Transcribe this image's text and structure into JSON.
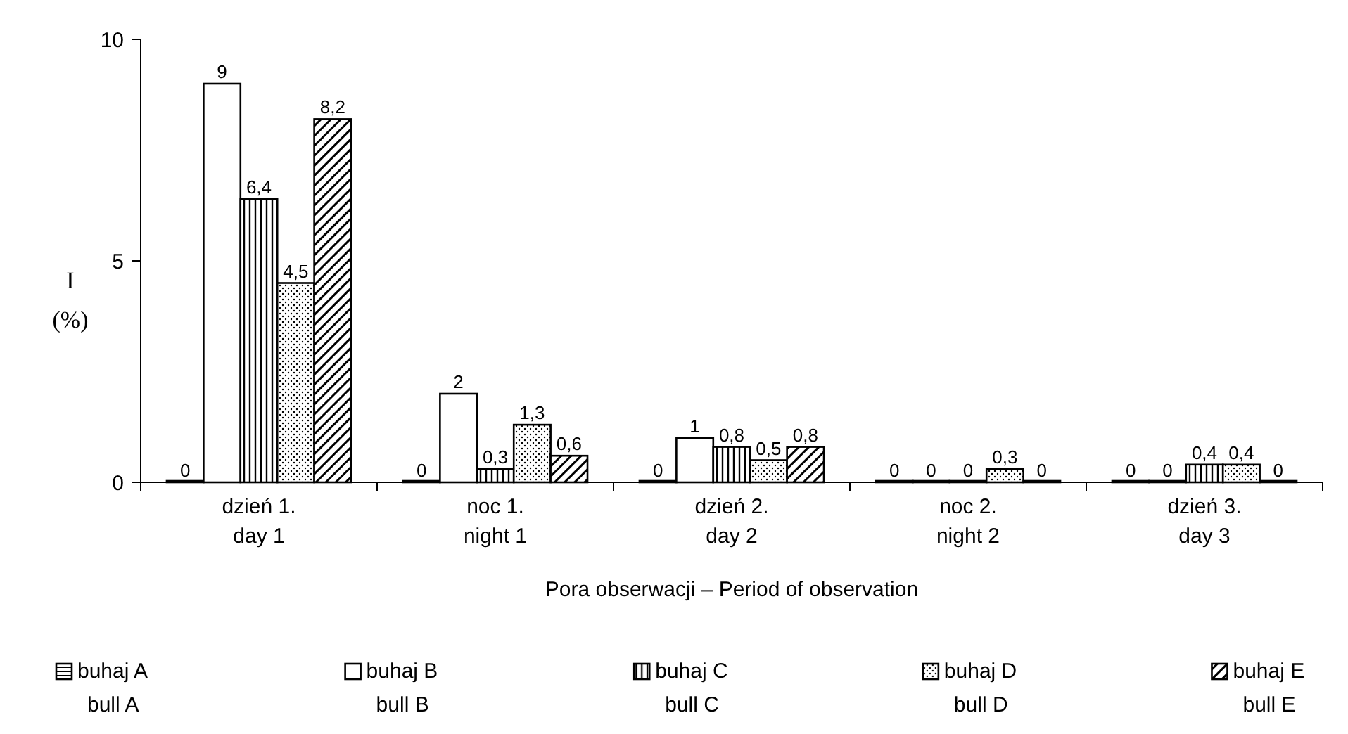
{
  "chart_data": {
    "type": "bar",
    "ylabel": "I\n(%)",
    "xlabel": "Pora obserwacji – Period of observation",
    "categories": [
      "dzień 1.\nday 1",
      "noc 1.\nnight 1",
      "dzień 2.\nday 2",
      "noc 2.\nnight 2",
      "dzień 3.\nday 3"
    ],
    "series": [
      {
        "name": "buhaj A\nbull A",
        "color": "#000000",
        "values": [
          0,
          0,
          0,
          0,
          0
        ],
        "value_labels": [
          "0",
          "0",
          "0",
          "0",
          "0"
        ]
      },
      {
        "name": "buhaj B\nbull B",
        "color": "#000000",
        "values": [
          9,
          2,
          1,
          0,
          0
        ],
        "value_labels": [
          "9",
          "2",
          "1",
          "0",
          "0"
        ]
      },
      {
        "name": "buhaj C\nbull C",
        "color": "#000000",
        "values": [
          6.4,
          0.3,
          0.8,
          0,
          0.4
        ],
        "value_labels": [
          "6,4",
          "0,3",
          "0,8",
          "0",
          "0,4"
        ]
      },
      {
        "name": "buhaj D\nbull D",
        "color": "#000000",
        "values": [
          4.5,
          1.3,
          0.5,
          0.3,
          0.4
        ],
        "value_labels": [
          "4,5",
          "1,3",
          "0,5",
          "0,3",
          "0,4"
        ]
      },
      {
        "name": "buhaj E\nbull E",
        "color": "#000000",
        "values": [
          8.2,
          0.6,
          0.8,
          0,
          0
        ],
        "value_labels": [
          "8,2",
          "0,6",
          "0,8",
          "0",
          "0"
        ]
      }
    ],
    "ylim": [
      0,
      10
    ],
    "yticks": [
      0,
      5,
      10
    ],
    "legend": "bottom"
  }
}
